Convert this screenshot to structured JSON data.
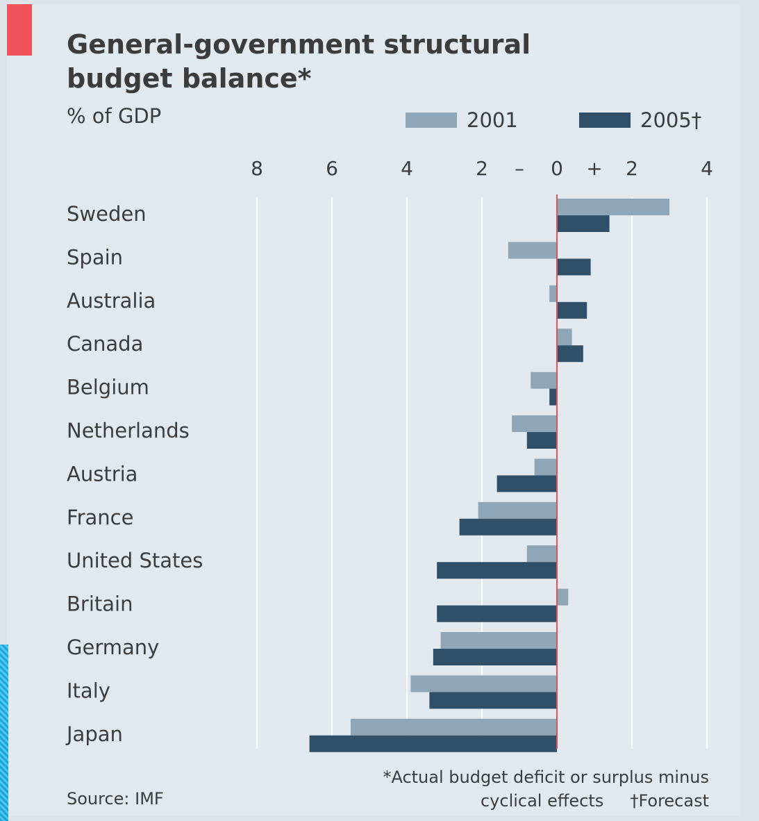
{
  "header": {
    "title_line1": "General-government structural",
    "title_line2": "budget balance*",
    "subtitle": "% of GDP"
  },
  "footer": {
    "source": "Source: IMF",
    "footnote_line1": "*Actual budget deficit or surplus minus",
    "footnote_line2": "cyclical effects",
    "footnote_forecast": "†Forecast"
  },
  "colors": {
    "series_2001": "#8fa6b8",
    "series_2005": "#2f5068",
    "zero_line": "#e0525a",
    "grid": "#ffffff",
    "accent_tag": "#f0525a"
  },
  "chart_data": {
    "type": "bar",
    "orientation": "horizontal",
    "title": "General-government structural budget balance*",
    "subtitle": "% of GDP",
    "categories": [
      "Sweden",
      "Spain",
      "Australia",
      "Canada",
      "Belgium",
      "Netherlands",
      "Austria",
      "France",
      "United States",
      "Britain",
      "Germany",
      "Italy",
      "Japan"
    ],
    "series": [
      {
        "name": "2001",
        "values": [
          3.0,
          -1.3,
          -0.2,
          0.4,
          -0.7,
          -1.2,
          -0.6,
          -2.1,
          -0.8,
          0.3,
          -3.1,
          -3.9,
          -5.5
        ]
      },
      {
        "name": "2005†",
        "values": [
          1.4,
          0.9,
          0.8,
          0.7,
          -0.2,
          -0.8,
          -1.6,
          -2.6,
          -3.2,
          -3.2,
          -3.3,
          -3.4,
          -6.6
        ]
      }
    ],
    "xlim": [
      -8,
      4
    ],
    "x_ticks": [
      {
        "value": -8,
        "label": "8"
      },
      {
        "value": -6,
        "label": "6"
      },
      {
        "value": -4,
        "label": "4"
      },
      {
        "value": -2,
        "label": "2"
      },
      {
        "value": -1,
        "label": "–"
      },
      {
        "value": 0,
        "label": "0"
      },
      {
        "value": 1,
        "label": "+"
      },
      {
        "value": 2,
        "label": "2"
      },
      {
        "value": 4,
        "label": "4"
      }
    ],
    "grid": true,
    "legend_position": "top-right"
  }
}
